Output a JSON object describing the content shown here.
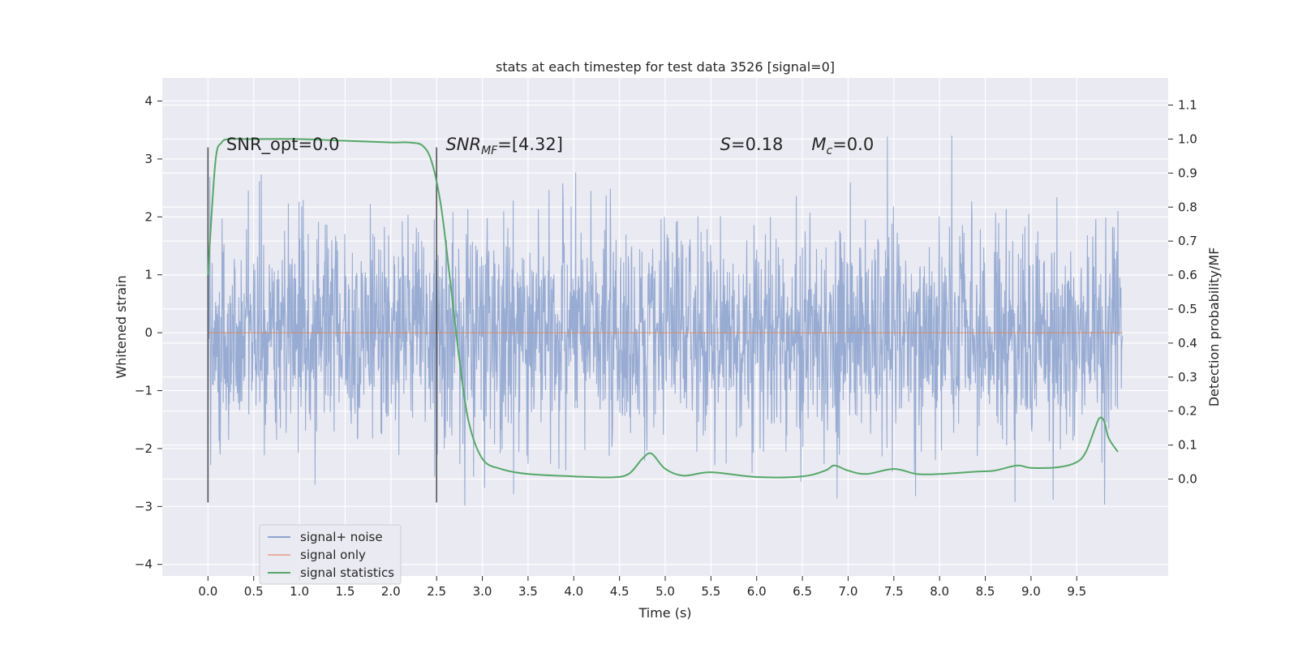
{
  "chart_data": {
    "type": "line",
    "title": "stats at each timestep for test data 3526 [signal=0]",
    "xlabel": "Time (s)",
    "ylabel": "Whitened strain",
    "y2label": "Detection probability/MF",
    "xlim": [
      -0.5,
      10.5
    ],
    "ylim": [
      -4.2,
      4.4
    ],
    "y2lim": [
      -0.285,
      1.18
    ],
    "xticks": [
      "0.0",
      "0.5",
      "1.0",
      "1.5",
      "2.0",
      "2.5",
      "3.0",
      "3.5",
      "4.0",
      "4.5",
      "5.0",
      "5.5",
      "6.0",
      "6.5",
      "7.0",
      "7.5",
      "8.0",
      "8.5",
      "9.0",
      "9.5"
    ],
    "yticks": [
      "4",
      "3",
      "2",
      "1",
      "0",
      "−1",
      "−2",
      "−3",
      "−4"
    ],
    "y2ticks": [
      "1.1",
      "1.0",
      "0.9",
      "0.8",
      "0.7",
      "0.6",
      "0.5",
      "0.4",
      "0.3",
      "0.2",
      "0.1",
      "0.0"
    ],
    "grid": true,
    "legend_position": "lower-left",
    "vlines": [
      0.0,
      2.5
    ],
    "vline_range": [
      -2.93,
      3.2
    ],
    "noise_sigma": 0.95,
    "noise_range": [
      0.0,
      10.0
    ],
    "annotations": [
      {
        "text": "SNR_opt=0.0",
        "x": 0.2,
        "y": 3.15
      },
      {
        "text_html": "SNR_MF=[4.32]",
        "parts": [
          "SNR",
          "MF",
          "=[4.32]"
        ],
        "x": 2.6,
        "y": 3.15
      },
      {
        "parts": [
          "S",
          "=0.18"
        ],
        "x": 5.6,
        "y": 3.15
      },
      {
        "parts": [
          "M",
          "c",
          "=0.0"
        ],
        "x": 6.6,
        "y": 3.15
      }
    ],
    "series": [
      {
        "name": "signal+ noise",
        "color": "#8fa5cf",
        "axis": "left"
      },
      {
        "name": "signal only",
        "color": "#dd8452",
        "axis": "left",
        "x": [
          0.0,
          10.0
        ],
        "y": [
          0.0,
          0.0
        ]
      },
      {
        "name": "signal statistics",
        "color": "#55a868",
        "axis": "right",
        "x": [
          0.0,
          0.08,
          0.15,
          0.25,
          0.5,
          1.0,
          1.5,
          2.0,
          2.2,
          2.35,
          2.45,
          2.55,
          2.65,
          2.75,
          2.85,
          3.0,
          3.2,
          3.5,
          4.0,
          4.4,
          4.6,
          4.75,
          4.85,
          5.0,
          5.2,
          5.5,
          6.0,
          6.5,
          6.75,
          6.85,
          7.0,
          7.2,
          7.5,
          7.75,
          8.0,
          8.4,
          8.6,
          8.85,
          9.0,
          9.3,
          9.5,
          9.6,
          9.7,
          9.75,
          9.8,
          9.85,
          9.95
        ],
        "y": [
          0.6,
          0.93,
          0.99,
          1.0,
          1.0,
          1.0,
          0.995,
          0.99,
          0.99,
          0.98,
          0.93,
          0.8,
          0.58,
          0.35,
          0.17,
          0.06,
          0.03,
          0.015,
          0.008,
          0.005,
          0.015,
          0.06,
          0.075,
          0.03,
          0.01,
          0.02,
          0.006,
          0.008,
          0.025,
          0.04,
          0.025,
          0.015,
          0.03,
          0.015,
          0.015,
          0.022,
          0.025,
          0.04,
          0.033,
          0.035,
          0.05,
          0.08,
          0.15,
          0.18,
          0.17,
          0.12,
          0.08
        ]
      }
    ]
  }
}
